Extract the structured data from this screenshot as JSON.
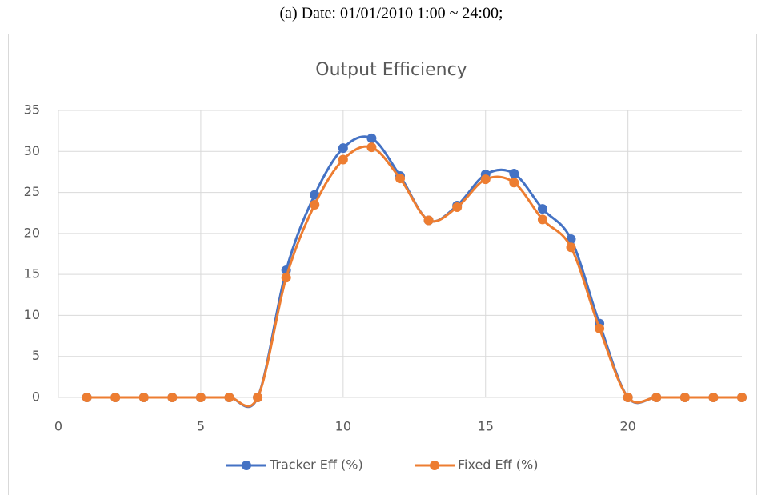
{
  "caption": "(a) Date: 01/01/2010 1:00 ~ 24:00;",
  "chart_data": {
    "type": "line",
    "title": "Output Efficiency",
    "x": [
      1,
      2,
      3,
      4,
      5,
      6,
      7,
      8,
      9,
      10,
      11,
      12,
      13,
      14,
      15,
      16,
      17,
      18,
      19,
      20,
      21,
      22,
      23,
      24
    ],
    "series": [
      {
        "name": "Tracker Eff (%)",
        "color": "#4472c4",
        "values": [
          0,
          0,
          0,
          0,
          0,
          0,
          0,
          15.5,
          24.7,
          30.4,
          31.6,
          27,
          21.6,
          23.4,
          27.2,
          27.3,
          23,
          19.3,
          9,
          0,
          0,
          0,
          0,
          0
        ]
      },
      {
        "name": "Fixed Eff (%)",
        "color": "#ed7d31",
        "values": [
          0,
          0,
          0,
          0,
          0,
          0,
          0,
          14.6,
          23.5,
          29,
          30.5,
          26.7,
          21.6,
          23.2,
          26.6,
          26.2,
          21.7,
          18.3,
          8.4,
          0,
          0,
          0,
          0,
          0
        ]
      }
    ],
    "xlim": [
      0,
      24
    ],
    "xticks": [
      0,
      5,
      10,
      15,
      20
    ],
    "ylim": [
      0,
      35
    ],
    "yticks": [
      0,
      5,
      10,
      15,
      20,
      25,
      30,
      35
    ],
    "grid": true,
    "smooth": true,
    "legend": "bottom"
  }
}
